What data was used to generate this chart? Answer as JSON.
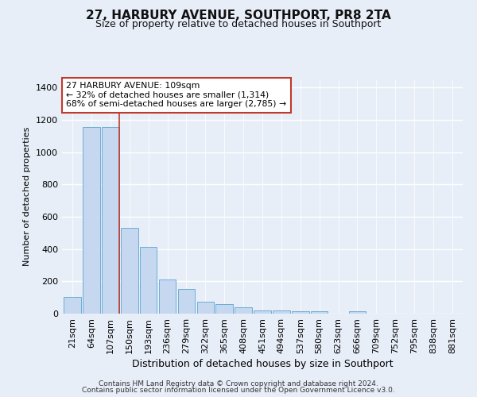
{
  "title": "27, HARBURY AVENUE, SOUTHPORT, PR8 2TA",
  "subtitle": "Size of property relative to detached houses in Southport",
  "xlabel": "Distribution of detached houses by size in Southport",
  "ylabel": "Number of detached properties",
  "bar_labels": [
    "21sqm",
    "64sqm",
    "107sqm",
    "150sqm",
    "193sqm",
    "236sqm",
    "279sqm",
    "322sqm",
    "365sqm",
    "408sqm",
    "451sqm",
    "494sqm",
    "537sqm",
    "580sqm",
    "623sqm",
    "666sqm",
    "709sqm",
    "752sqm",
    "795sqm",
    "838sqm",
    "881sqm"
  ],
  "bar_values": [
    105,
    1155,
    1155,
    530,
    415,
    210,
    150,
    75,
    60,
    40,
    20,
    20,
    15,
    15,
    0,
    15,
    0,
    0,
    0,
    0,
    0
  ],
  "bar_color": "#c5d8f0",
  "bar_edge_color": "#6baed6",
  "vline_x_idx": 2,
  "vline_color": "#c0392b",
  "annotation_text": "27 HARBURY AVENUE: 109sqm\n← 32% of detached houses are smaller (1,314)\n68% of semi-detached houses are larger (2,785) →",
  "annotation_box_color": "#ffffff",
  "annotation_box_edge": "#c0392b",
  "ylim": [
    0,
    1450
  ],
  "yticks": [
    0,
    200,
    400,
    600,
    800,
    1000,
    1200,
    1400
  ],
  "footer1": "Contains HM Land Registry data © Crown copyright and database right 2024.",
  "footer2": "Contains public sector information licensed under the Open Government Licence v3.0.",
  "bg_color": "#e8eef8",
  "plot_bg_color": "#e8eef8",
  "title_fontsize": 11,
  "subtitle_fontsize": 9,
  "xlabel_fontsize": 9,
  "ylabel_fontsize": 8,
  "tick_fontsize": 8,
  "footer_fontsize": 6.5
}
